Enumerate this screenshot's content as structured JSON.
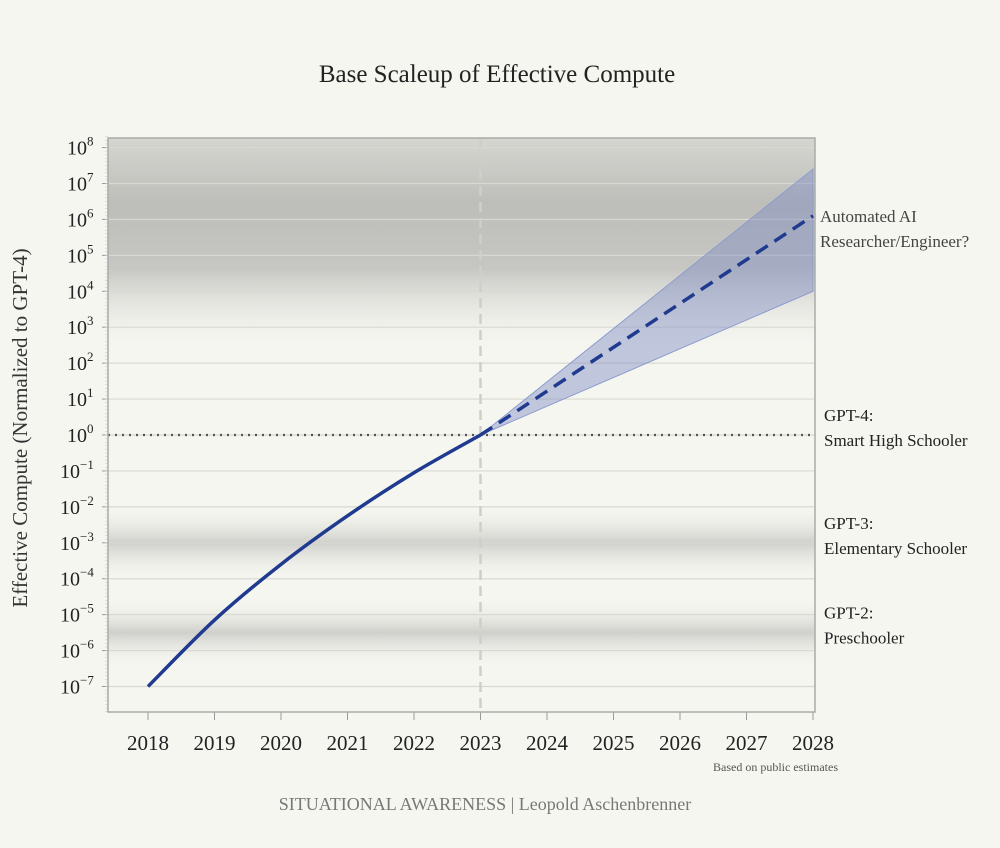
{
  "chart_data": {
    "type": "line",
    "title": "Base Scaleup of Effective Compute",
    "ylabel": "Effective Compute (Normalized to GPT-4)",
    "xlabel": "",
    "xlim": [
      2017.4,
      2028
    ],
    "ylim_log10": [
      -7.7,
      8.3
    ],
    "y_scale": "log",
    "x_ticks": [
      "2018",
      "2019",
      "2020",
      "2021",
      "2022",
      "2023",
      "2024",
      "2025",
      "2026",
      "2027",
      "2028"
    ],
    "y_ticks_exponents": [
      "8",
      "7",
      "6",
      "5",
      "4",
      "3",
      "2",
      "1",
      "0",
      "−1",
      "−2",
      "−3",
      "−4",
      "−5",
      "−6",
      "−7"
    ],
    "grid": true,
    "series": [
      {
        "style": "solid",
        "color": "#1f3a8f",
        "x": [
          2018,
          2019,
          2020,
          2021,
          2022,
          2023
        ],
        "log10_y": [
          -7,
          -5.15,
          -3.6,
          -2.25,
          -1.05,
          0
        ]
      },
      {
        "style": "dashed",
        "color": "#1f3a8f",
        "x": [
          2023,
          2028
        ],
        "log10_y": [
          0,
          6.1
        ]
      }
    ],
    "band": {
      "color": "#7f8fc4",
      "x": [
        2023,
        2028
      ],
      "log10_upper": [
        0,
        7.4
      ],
      "log10_lower": [
        0,
        4.0
      ]
    },
    "reference_lines": [
      {
        "type": "horizontal",
        "log10_y": 0,
        "style": "dotted"
      },
      {
        "type": "vertical",
        "x": 2023,
        "style": "dashed"
      }
    ],
    "annotations": [
      {
        "lines": [
          "Automated AI",
          "Researcher/Engineer?"
        ],
        "log10_y": 6.1
      },
      {
        "lines": [
          "GPT-4:",
          "Smart High Schooler"
        ],
        "log10_y": 0
      },
      {
        "lines": [
          "GPT-3:",
          "Elementary Schooler"
        ],
        "log10_y": -3
      },
      {
        "lines": [
          "GPT-2:",
          "Preschooler"
        ],
        "log10_y": -5.5
      }
    ],
    "note": "Based on public estimates",
    "footer": "SITUATIONAL AWARENESS | Leopold Aschenbrenner"
  }
}
